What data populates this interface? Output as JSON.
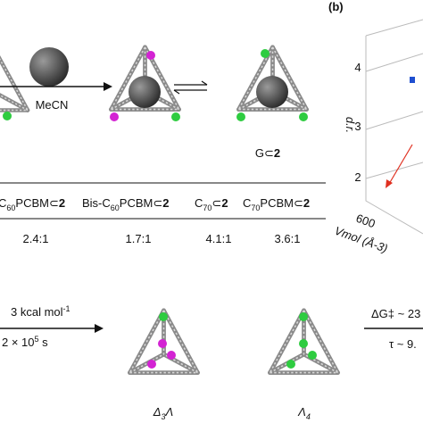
{
  "panel_b": {
    "label": "(b)",
    "y_axis_label": "d.r.",
    "y_ticks": [
      "4",
      "3",
      "2"
    ],
    "x_axis_label": "Vmol (Å-3)",
    "x_tick": "600"
  },
  "scheme_top": {
    "reagent": "MeCN",
    "product_label": [
      "G⊂",
      "2"
    ]
  },
  "table": {
    "header": [
      [
        "C",
        "60",
        "PCBM⊂",
        "2"
      ],
      [
        "Bis-C",
        "60",
        "PCBM⊂",
        "2"
      ],
      [
        "C",
        "70",
        "⊂",
        "2"
      ],
      [
        "C",
        "70",
        "PCBM⊂",
        "2"
      ]
    ],
    "row": [
      "2.4:1",
      "1.7:1",
      "4.1:1",
      "3.6:1"
    ]
  },
  "scheme_bottom": {
    "barrier_left": [
      "3 kcal mol",
      "-1"
    ],
    "time_left": [
      "2 × 10",
      "5",
      " s"
    ],
    "isomer_1": [
      "Δ",
      "3",
      "Λ"
    ],
    "isomer_2": [
      "Λ",
      "4"
    ],
    "barrier_right": "ΔG‡ ~ 23",
    "time_right": "τ ~ 9."
  }
}
